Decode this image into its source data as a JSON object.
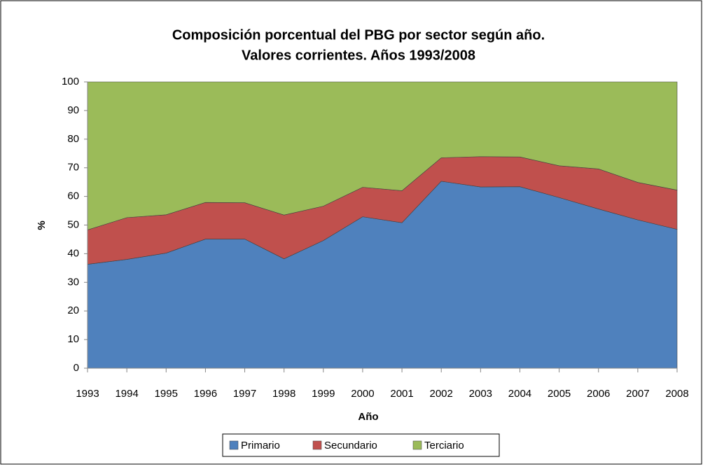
{
  "chart_data": {
    "type": "stacked_area",
    "title": [
      "Composición porcentual del PBG por sector según año.",
      "Valores corrientes. Años 1993/2008"
    ],
    "x_label": "Año",
    "y_label": "%",
    "categories": [
      "1993",
      "1994",
      "1995",
      "1996",
      "1997",
      "1998",
      "1999",
      "2000",
      "2001",
      "2002",
      "2003",
      "2004",
      "2005",
      "2006",
      "2007",
      "2008"
    ],
    "series": [
      {
        "name": "Primario",
        "color": "#4f81bd",
        "values": [
          36.3,
          38.0,
          40.2,
          45.1,
          45.1,
          38.2,
          44.6,
          52.9,
          50.8,
          65.3,
          63.3,
          63.4,
          59.6,
          55.6,
          51.8,
          48.5
        ]
      },
      {
        "name": "Secundario",
        "color": "#c0504d",
        "values": [
          12.0,
          14.6,
          13.4,
          12.8,
          12.7,
          15.3,
          12.0,
          10.3,
          11.2,
          8.2,
          10.6,
          10.4,
          11.1,
          14.0,
          13.1,
          13.7
        ]
      },
      {
        "name": "Terciario",
        "color": "#9bbb59",
        "values": [
          51.7,
          47.4,
          46.4,
          42.1,
          42.2,
          46.5,
          43.4,
          36.8,
          38.0,
          26.5,
          26.1,
          26.2,
          29.3,
          30.4,
          35.1,
          37.8
        ]
      }
    ],
    "ylim": [
      0,
      100
    ],
    "yticks": [
      0,
      10,
      20,
      30,
      40,
      50,
      60,
      70,
      80,
      90,
      100
    ],
    "legend": "bottom"
  }
}
